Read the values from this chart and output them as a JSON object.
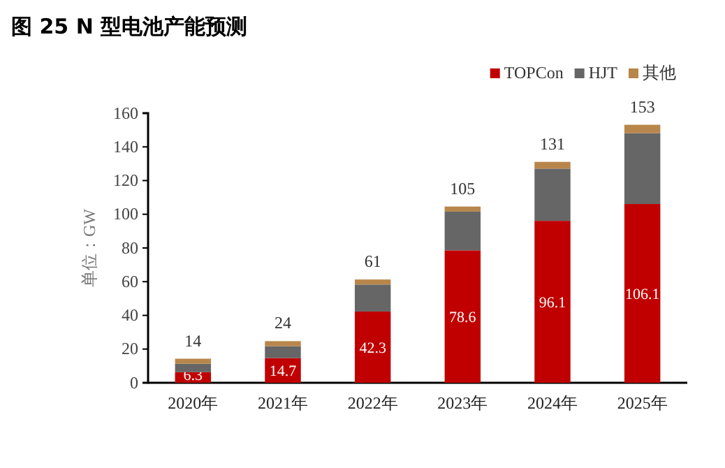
{
  "chart_data": {
    "type": "bar",
    "title": "图 25 N 型电池产能预测",
    "ylabel": "单位：GW",
    "categories": [
      "2020年",
      "2021年",
      "2022年",
      "2023年",
      "2024年",
      "2025年"
    ],
    "stacked": true,
    "legend": "top right",
    "grid": false,
    "ylim": [
      0,
      160
    ],
    "yticks": [
      0,
      20,
      40,
      60,
      80,
      100,
      120,
      140,
      160
    ],
    "series": [
      {
        "name": "TOPCon",
        "color": "#c00000",
        "values": [
          6.3,
          14.7,
          42.3,
          78.6,
          96.1,
          106.1
        ],
        "value_labels": [
          "6.3",
          "14.7",
          "42.3",
          "78.6",
          "96.1",
          "106.1"
        ]
      },
      {
        "name": "HJT",
        "color": "#666666",
        "values": [
          5,
          7,
          16,
          23,
          31,
          42
        ]
      },
      {
        "name": "其他",
        "color": "#b8864b",
        "values": [
          3,
          3,
          3,
          3,
          4,
          5
        ]
      }
    ],
    "totals": [
      "14",
      "24",
      "61",
      "105",
      "131",
      "153"
    ]
  }
}
